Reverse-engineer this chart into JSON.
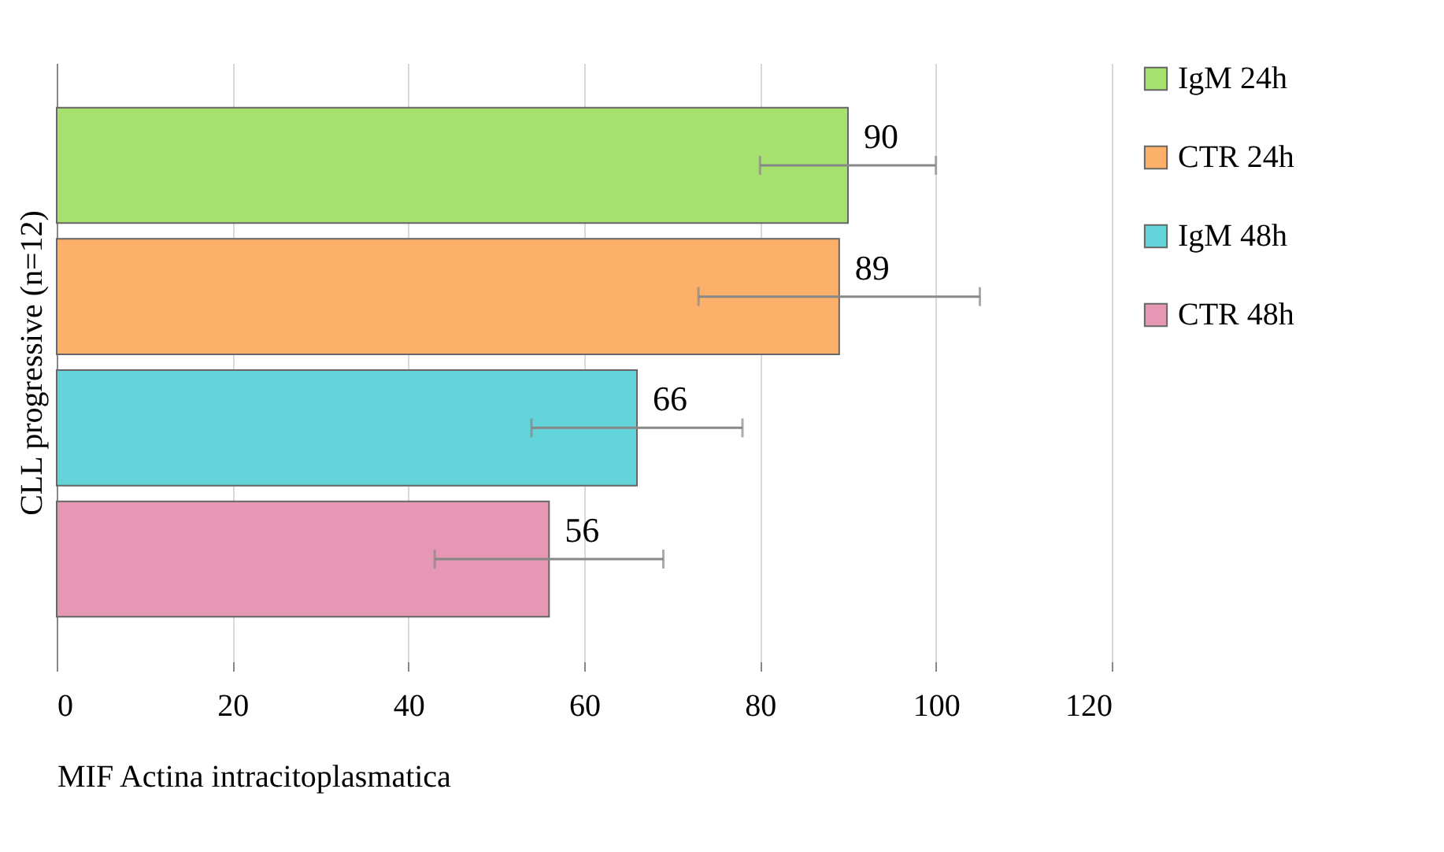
{
  "chart_data": {
    "type": "bar",
    "orientation": "horizontal",
    "categories": [
      null
    ],
    "ylabel": "CLL progressive (n=12)",
    "xlabel": "MIF Actina intracitoplasmatica",
    "xlim": [
      0,
      120
    ],
    "xticks": [
      0,
      20,
      40,
      60,
      80,
      100,
      120
    ],
    "grid": "x",
    "legend": "right",
    "data_labels": true,
    "series": [
      {
        "name": "IgM 24h",
        "color": "#a6e06e",
        "values": [
          90
        ],
        "errors": [
          10
        ]
      },
      {
        "name": "CTR 24h",
        "color": "#fdb06a",
        "values": [
          89
        ],
        "errors": [
          16
        ]
      },
      {
        "name": "IgM 48h",
        "color": "#63d4da",
        "values": [
          66
        ],
        "errors": [
          12
        ]
      },
      {
        "name": "CTR 48h",
        "color": "#e597b4",
        "values": [
          56
        ],
        "errors": [
          13
        ]
      }
    ]
  }
}
